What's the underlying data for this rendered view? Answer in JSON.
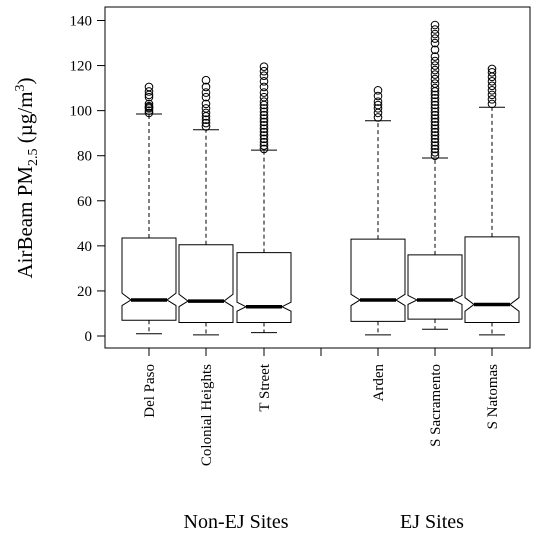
{
  "chart_data": {
    "type": "boxplot",
    "ylabel": {
      "prefix": "AirBeam PM",
      "subscript": "2.5",
      "unit_open": " (µg/m",
      "superscript": "3",
      "unit_close": ")"
    },
    "ylim": [
      0,
      140
    ],
    "yticks": [
      0,
      20,
      40,
      60,
      80,
      100,
      120,
      140
    ],
    "notched": true,
    "groups": [
      {
        "label": "Non-EJ Sites",
        "categories": [
          "Del Paso",
          "Colonial Heights",
          "T Street"
        ]
      },
      {
        "label": "EJ Sites",
        "categories": [
          "Arden",
          "S Sacramento",
          "S Natomas"
        ]
      }
    ],
    "boxes": [
      {
        "category": "Del Paso",
        "min": 1,
        "q1": 7,
        "median": 16,
        "q3": 43.5,
        "max": 98.5,
        "notch": [
          13.5,
          19
        ],
        "outliers": [
          99,
          100,
          101,
          101.5,
          102,
          103,
          106,
          107,
          108.5,
          110.5
        ]
      },
      {
        "category": "Colonial Heights",
        "min": 0.5,
        "q1": 6,
        "median": 15.5,
        "q3": 40.5,
        "max": 91.5,
        "notch": [
          13,
          18.5
        ],
        "outliers": [
          93,
          94.5,
          96,
          97.5,
          99,
          101,
          103,
          106,
          108,
          110.5,
          113.5
        ]
      },
      {
        "category": "T Street",
        "min": 1.5,
        "q1": 6,
        "median": 13,
        "q3": 37,
        "max": 82.5,
        "notch": [
          11,
          15
        ],
        "outliers": [
          83,
          84.5,
          86,
          87.5,
          89,
          90.5,
          92,
          93.5,
          95,
          96.5,
          98,
          99.5,
          101,
          102.5,
          104,
          106,
          108,
          110.5,
          113,
          115.5,
          117.5,
          119.5
        ]
      },
      {
        "category": "Arden",
        "min": 0.5,
        "q1": 6.5,
        "median": 16,
        "q3": 43,
        "max": 95.5,
        "notch": [
          13.5,
          18.5
        ],
        "outliers": [
          97,
          99,
          101,
          102.5,
          104,
          106.5,
          109
        ]
      },
      {
        "category": "S Sacramento",
        "min": 3,
        "q1": 7.5,
        "median": 16,
        "q3": 36,
        "max": 79,
        "notch": [
          14,
          18
        ],
        "outliers": [
          80,
          81.5,
          83,
          84.5,
          86,
          87.5,
          89,
          90.5,
          92,
          93.5,
          95,
          96.5,
          98,
          99.5,
          101,
          102.5,
          104,
          105.5,
          107,
          108.5,
          110,
          112,
          114,
          116,
          118,
          120,
          122,
          124,
          127,
          130,
          132,
          134,
          136,
          138
        ]
      },
      {
        "category": "S Natomas",
        "min": 0.5,
        "q1": 6,
        "median": 14,
        "q3": 44,
        "max": 101.5,
        "notch": [
          11,
          17
        ],
        "outliers": [
          103,
          105,
          107,
          109,
          111,
          113,
          115,
          117,
          118.5
        ]
      }
    ]
  }
}
